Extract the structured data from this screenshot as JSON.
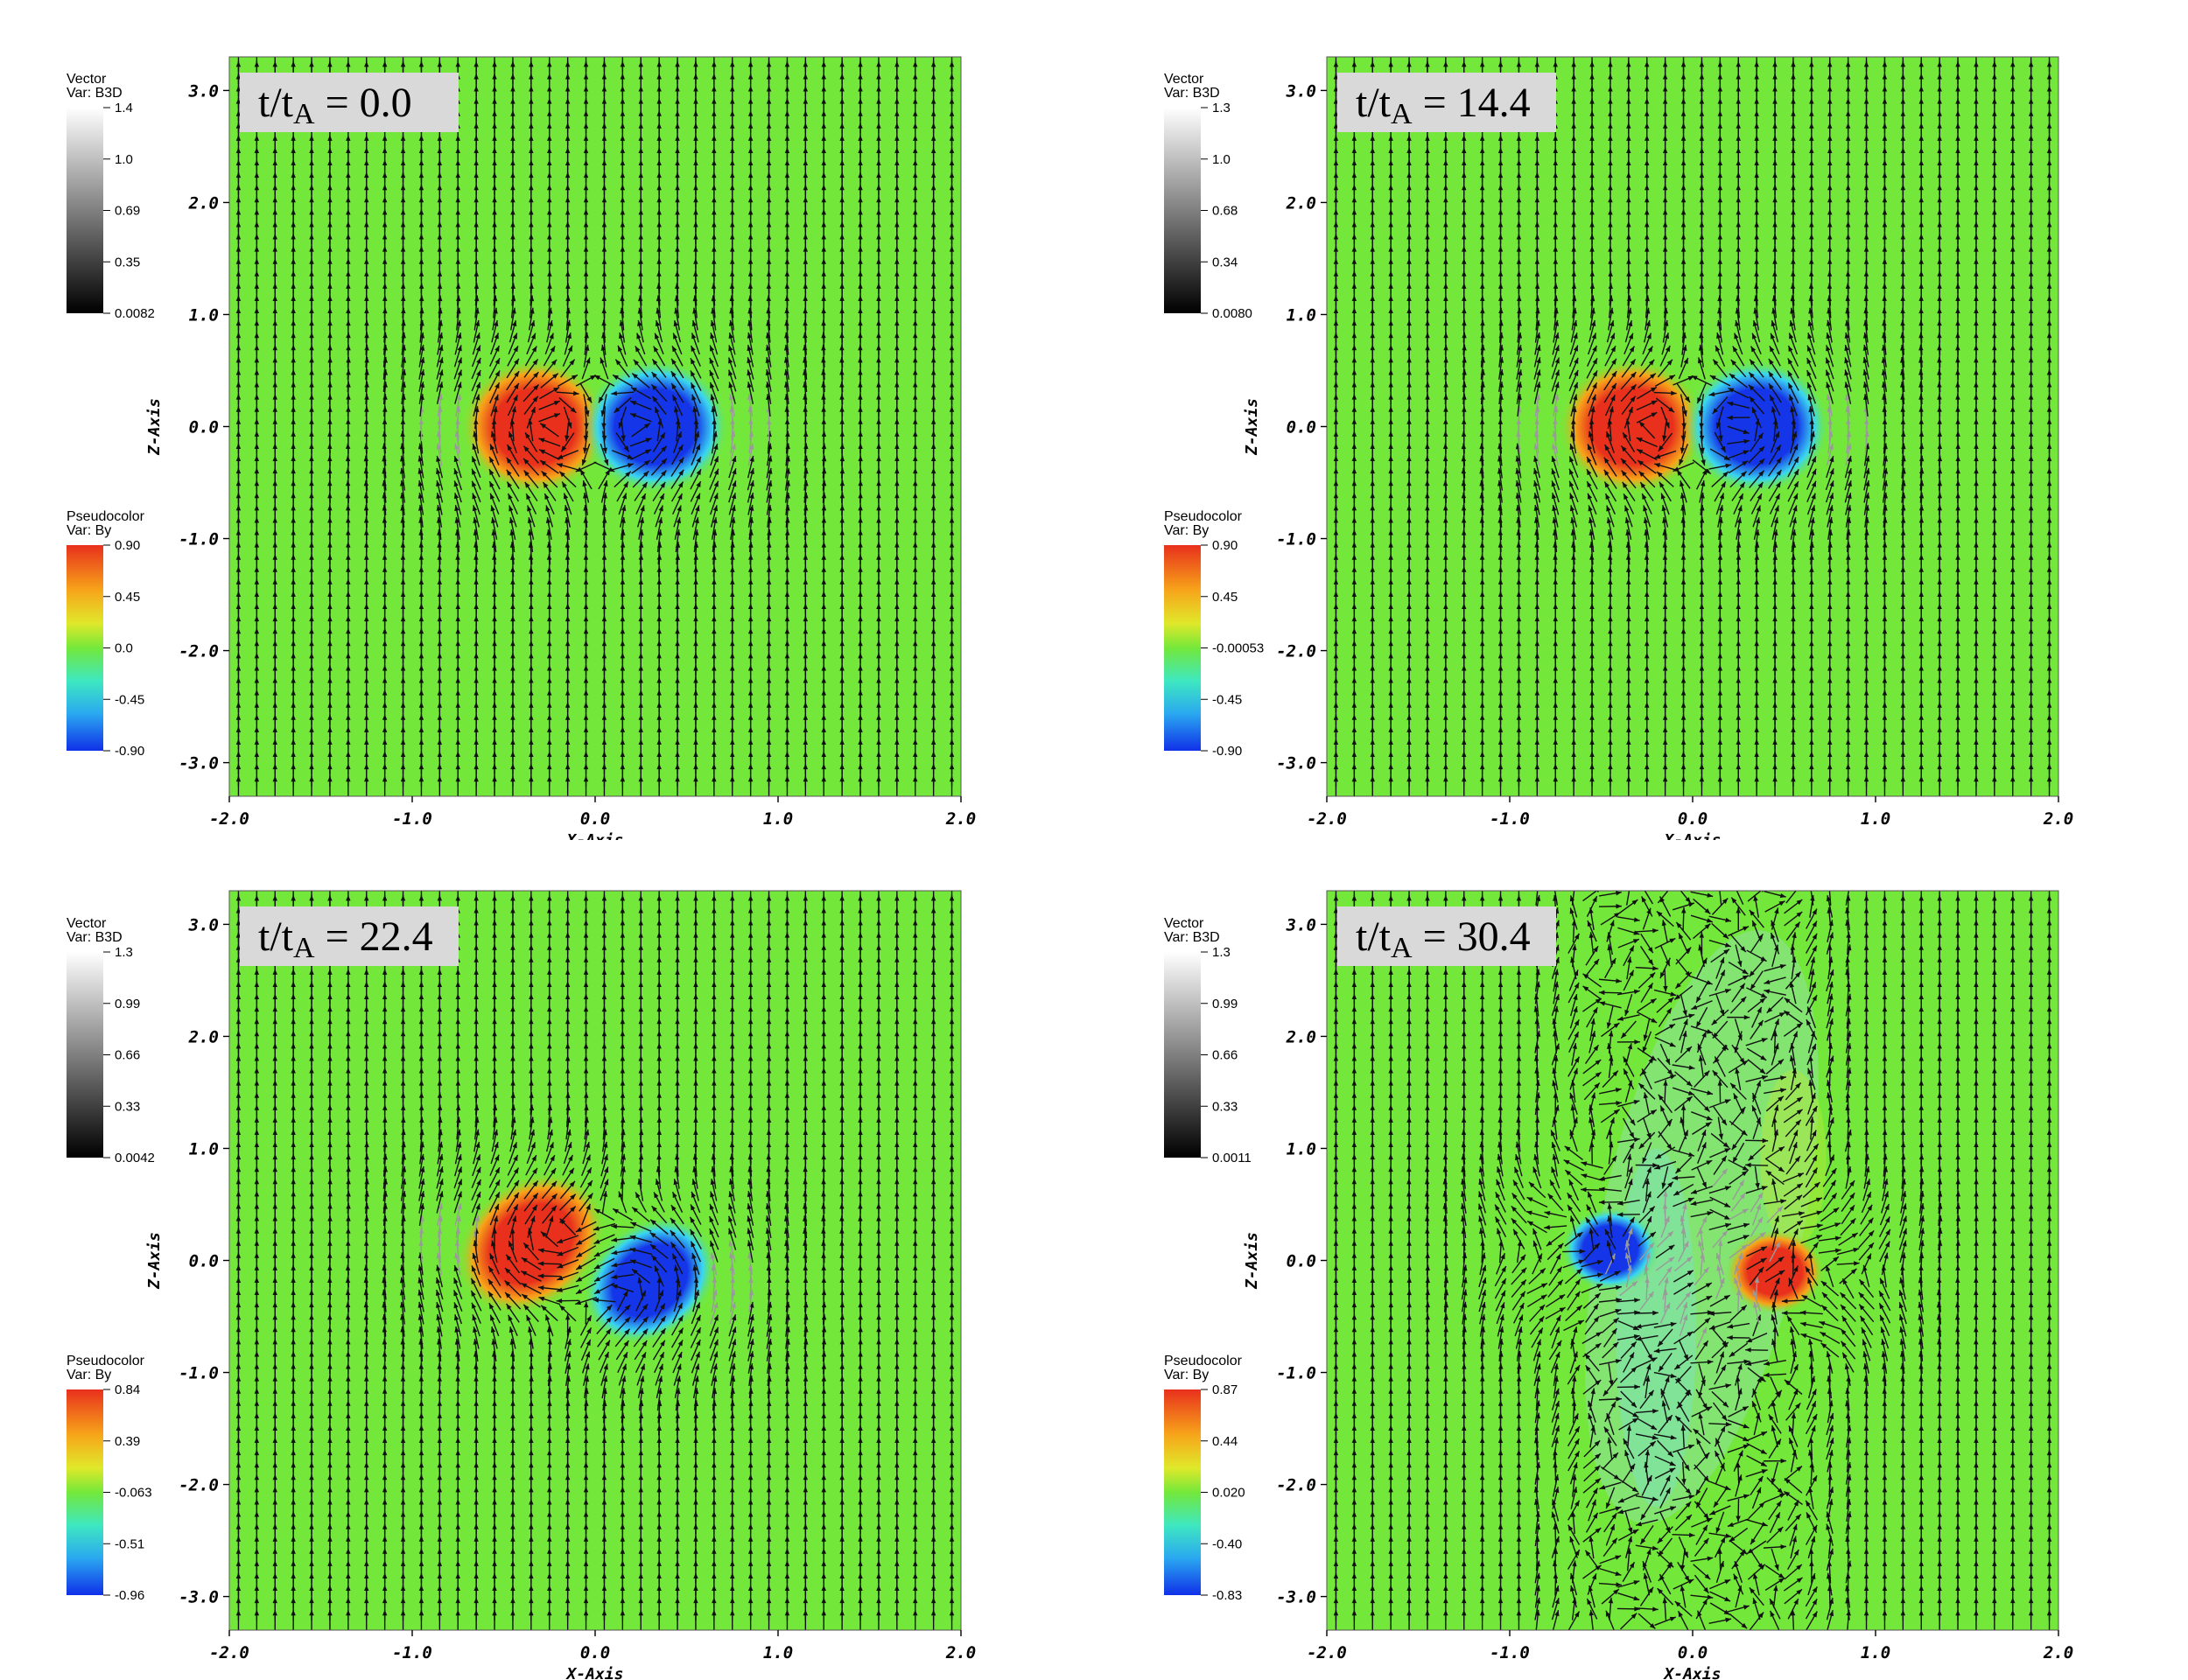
{
  "chart_data": [
    {
      "type": "heatmap",
      "time_label": {
        "prefix": "t/t",
        "sub": "A",
        "suffix": " = 0.0"
      },
      "xlabel": "X-Axis",
      "ylabel": "Z-Axis",
      "xlim": [
        -2.0,
        2.0
      ],
      "ylim": [
        -3.3,
        3.3
      ],
      "x_ticks": [
        "-2.0",
        "-1.0",
        "0.0",
        "1.0",
        "2.0"
      ],
      "y_ticks": [
        "3.0",
        "2.0",
        "1.0",
        "0.0",
        "-1.0",
        "-2.0",
        "-3.0"
      ],
      "vector_legend": {
        "title": "Vector",
        "var": "Var: B3D",
        "max": "1.4",
        "ticks": [
          "1.4",
          "1.0",
          "0.69",
          "0.35",
          "0.0082"
        ]
      },
      "pseudocolor_legend": {
        "title": "Pseudocolor",
        "var": "Var: By",
        "max": "0.90",
        "ticks": [
          "0.90",
          "0.45",
          "0.0",
          "-0.45",
          "-0.90"
        ]
      },
      "blobs": [
        {
          "sign": "positive",
          "x": -0.33,
          "z": 0.0,
          "rx": 0.3,
          "rz": 0.45,
          "rotate": 0
        },
        {
          "sign": "negative",
          "x": 0.33,
          "z": 0.0,
          "rx": 0.3,
          "rz": 0.45,
          "rotate": 0
        }
      ],
      "turbulence": false
    },
    {
      "type": "heatmap",
      "time_label": {
        "prefix": "t/t",
        "sub": "A",
        "suffix": " = 14.4"
      },
      "xlabel": "X-Axis",
      "ylabel": "Z-Axis",
      "xlim": [
        -2.0,
        2.0
      ],
      "ylim": [
        -3.3,
        3.3
      ],
      "x_ticks": [
        "-2.0",
        "-1.0",
        "0.0",
        "1.0",
        "2.0"
      ],
      "y_ticks": [
        "3.0",
        "2.0",
        "1.0",
        "0.0",
        "-1.0",
        "-2.0",
        "-3.0"
      ],
      "vector_legend": {
        "title": "Vector",
        "var": "Var: B3D",
        "max": "1.3",
        "ticks": [
          "1.3",
          "1.0",
          "0.68",
          "0.34",
          "0.0080"
        ]
      },
      "pseudocolor_legend": {
        "title": "Pseudocolor",
        "var": "Var: By",
        "max": "0.90",
        "ticks": [
          "0.90",
          "0.45",
          "-0.00053",
          "-0.45",
          "-0.90"
        ]
      },
      "blobs": [
        {
          "sign": "positive",
          "x": -0.33,
          "z": 0.0,
          "rx": 0.3,
          "rz": 0.45,
          "rotate": 0
        },
        {
          "sign": "negative",
          "x": 0.35,
          "z": 0.0,
          "rx": 0.3,
          "rz": 0.45,
          "rotate": 0
        }
      ],
      "turbulence": false
    },
    {
      "type": "heatmap",
      "time_label": {
        "prefix": "t/t",
        "sub": "A",
        "suffix": " = 22.4"
      },
      "xlabel": "X-Axis",
      "ylabel": "Z-Axis",
      "xlim": [
        -2.0,
        2.0
      ],
      "ylim": [
        -3.3,
        3.3
      ],
      "x_ticks": [
        "-2.0",
        "-1.0",
        "0.0",
        "1.0",
        "2.0"
      ],
      "y_ticks": [
        "3.0",
        "2.0",
        "1.0",
        "0.0",
        "-1.0",
        "-2.0",
        "-3.0"
      ],
      "vector_legend": {
        "title": "Vector",
        "var": "Var: B3D",
        "max": "1.3",
        "ticks": [
          "1.3",
          "0.99",
          "0.66",
          "0.33",
          "0.0042"
        ]
      },
      "pseudocolor_legend": {
        "title": "Pseudocolor",
        "var": "Var: By",
        "max": "0.84",
        "ticks": [
          "0.84",
          "0.39",
          "-0.063",
          "-0.51",
          "-0.96"
        ]
      },
      "blobs": [
        {
          "sign": "positive",
          "x": -0.35,
          "z": 0.15,
          "rx": 0.33,
          "rz": 0.42,
          "rotate": -40
        },
        {
          "sign": "negative",
          "x": 0.3,
          "z": -0.18,
          "rx": 0.3,
          "rz": 0.38,
          "rotate": -40
        }
      ],
      "turbulence": false
    },
    {
      "type": "heatmap",
      "time_label": {
        "prefix": "t/t",
        "sub": "A",
        "suffix": " = 30.4"
      },
      "xlabel": "X-Axis",
      "ylabel": "Z-Axis",
      "xlim": [
        -2.0,
        2.0
      ],
      "ylim": [
        -3.3,
        3.3
      ],
      "x_ticks": [
        "-2.0",
        "-1.0",
        "0.0",
        "1.0",
        "2.0"
      ],
      "y_ticks": [
        "3.0",
        "2.0",
        "1.0",
        "0.0",
        "-1.0",
        "-2.0",
        "-3.0"
      ],
      "vector_legend": {
        "title": "Vector",
        "var": "Var: B3D",
        "max": "1.3",
        "ticks": [
          "1.3",
          "0.99",
          "0.66",
          "0.33",
          "0.0011"
        ]
      },
      "pseudocolor_legend": {
        "title": "Pseudocolor",
        "var": "Var: By",
        "max": "0.87",
        "ticks": [
          "0.87",
          "0.44",
          "0.020",
          "-0.40",
          "-0.83"
        ]
      },
      "blobs": [
        {
          "sign": "negative",
          "x": -0.45,
          "z": 0.1,
          "rx": 0.2,
          "rz": 0.28,
          "rotate": 0
        },
        {
          "sign": "positive",
          "x": 0.45,
          "z": -0.1,
          "rx": 0.2,
          "rz": 0.28,
          "rotate": 0
        }
      ],
      "turbulence": true
    }
  ],
  "colors": {
    "background_field": "#74e83a",
    "positive": "#e8301c",
    "negative": "#1535e8",
    "arrow": "#111111",
    "label_box": "#d9d9d9"
  }
}
